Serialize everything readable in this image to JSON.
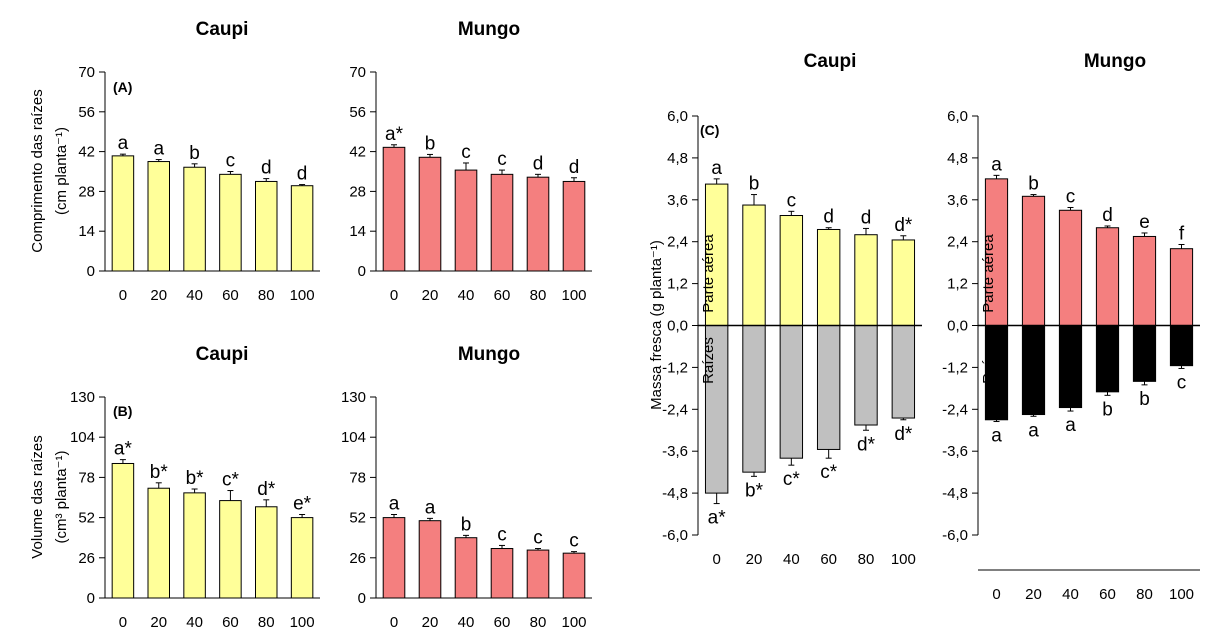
{
  "colors": {
    "caupi": "#ffff99",
    "mungo": "#f47f7f",
    "caupi_roots": "#c0c0c0",
    "mungo_roots": "#000000",
    "axis": "#000000"
  },
  "chart_data": [
    {
      "id": "A-caupi",
      "type": "bar",
      "title": "Caupi",
      "panel_label": "(A)",
      "ylabel_lines": [
        "Comprimento das raízes",
        "(cm planta⁻¹)"
      ],
      "categories": [
        "0",
        "20",
        "40",
        "60",
        "80",
        "100"
      ],
      "values": [
        40.5,
        38.5,
        36.5,
        34.0,
        31.5,
        30.0
      ],
      "errors": [
        0.6,
        0.7,
        1.2,
        1.0,
        1.0,
        0.4
      ],
      "labels": [
        "a",
        "a",
        "b",
        "c",
        "d",
        "d"
      ],
      "ylim": [
        0,
        70
      ],
      "yticks": [
        "0",
        "14",
        "28",
        "42",
        "56",
        "70"
      ],
      "grid": false
    },
    {
      "id": "A-mungo",
      "type": "bar",
      "title": "Mungo",
      "categories": [
        "0",
        "20",
        "40",
        "60",
        "80",
        "100"
      ],
      "values": [
        43.5,
        40.0,
        35.5,
        34.0,
        33.0,
        31.5
      ],
      "errors": [
        0.9,
        1.0,
        2.5,
        1.5,
        1.0,
        1.3
      ],
      "labels": [
        "a*",
        "b",
        "c",
        "c",
        "d",
        "d"
      ],
      "ylim": [
        0,
        70
      ],
      "yticks": [
        "0",
        "14",
        "28",
        "42",
        "56",
        "70"
      ],
      "grid": false
    },
    {
      "id": "B-caupi",
      "type": "bar",
      "title": "Caupi",
      "panel_label": "(B)",
      "ylabel_lines": [
        "Volume das raízes",
        "(cm³ planta⁻¹)"
      ],
      "categories": [
        "0",
        "20",
        "40",
        "60",
        "80",
        "100"
      ],
      "values": [
        87,
        71,
        68,
        63,
        59,
        52
      ],
      "errors": [
        2.5,
        3.5,
        2.5,
        6.5,
        4.5,
        2.0
      ],
      "labels": [
        "a*",
        "b*",
        "b*",
        "c*",
        "d*",
        "e*"
      ],
      "ylim": [
        0,
        130
      ],
      "yticks": [
        "0",
        "26",
        "52",
        "78",
        "104",
        "130"
      ],
      "grid": false
    },
    {
      "id": "B-mungo",
      "type": "bar",
      "title": "Mungo",
      "categories": [
        "0",
        "20",
        "40",
        "60",
        "80",
        "100"
      ],
      "values": [
        52,
        50,
        39,
        32,
        31,
        29
      ],
      "errors": [
        2.0,
        1.5,
        1.5,
        2.0,
        1.0,
        1.0
      ],
      "labels": [
        "a",
        "a",
        "b",
        "c",
        "c",
        "c"
      ],
      "ylim": [
        0,
        130
      ],
      "yticks": [
        "0",
        "26",
        "52",
        "78",
        "104",
        "130"
      ],
      "grid": false
    },
    {
      "id": "C-caupi",
      "type": "bar",
      "title": "Caupi",
      "panel_label": "(C)",
      "ylabel_lines": [
        "Massa fresca (g planta⁻¹)"
      ],
      "categories": [
        "0",
        "20",
        "40",
        "60",
        "80",
        "100"
      ],
      "series": [
        {
          "name": "Parte aérea",
          "values": [
            4.05,
            3.45,
            3.15,
            2.75,
            2.6,
            2.45
          ],
          "errors": [
            0.15,
            0.3,
            0.12,
            0.05,
            0.18,
            0.12
          ],
          "labels": [
            "a",
            "b",
            "c",
            "d",
            "d",
            "d*"
          ]
        },
        {
          "name": "Raízes",
          "values": [
            -4.8,
            -4.2,
            -3.8,
            -3.55,
            -2.85,
            -2.65
          ],
          "errors": [
            0.3,
            0.12,
            0.2,
            0.25,
            0.15,
            0.05
          ],
          "labels": [
            "a*",
            "b*",
            "c*",
            "c*",
            "d*",
            "d*"
          ]
        }
      ],
      "ylim": [
        -6.0,
        6.0
      ],
      "yticks": [
        "-6,0",
        "-4,8",
        "-3,6",
        "-2,4",
        "-1,2",
        "0,0",
        "1,2",
        "2,4",
        "3,6",
        "4,8",
        "6,0"
      ],
      "grid": false
    },
    {
      "id": "C-mungo",
      "type": "bar",
      "title": "Mungo",
      "categories": [
        "0",
        "20",
        "40",
        "60",
        "80",
        "100"
      ],
      "series": [
        {
          "name": "Parte aérea",
          "values": [
            4.2,
            3.7,
            3.3,
            2.8,
            2.55,
            2.2
          ],
          "errors": [
            0.1,
            0.05,
            0.08,
            0.05,
            0.1,
            0.12
          ],
          "labels": [
            "a",
            "b",
            "c",
            "d",
            "e",
            "f"
          ]
        },
        {
          "name": "Raízes",
          "values": [
            -2.7,
            -2.55,
            -2.35,
            -1.9,
            -1.6,
            -1.15
          ],
          "errors": [
            0.05,
            0.05,
            0.1,
            0.1,
            0.1,
            0.08
          ],
          "labels": [
            "a",
            "a",
            "a",
            "b",
            "b",
            "c"
          ]
        }
      ],
      "ylim": [
        -6.0,
        6.0
      ],
      "yticks": [
        "-6,0",
        "-4,8",
        "-3,6",
        "-2,4",
        "-1,2",
        "0,0",
        "1,2",
        "2,4",
        "3,6",
        "4,8",
        "6,0"
      ],
      "grid": false
    }
  ]
}
